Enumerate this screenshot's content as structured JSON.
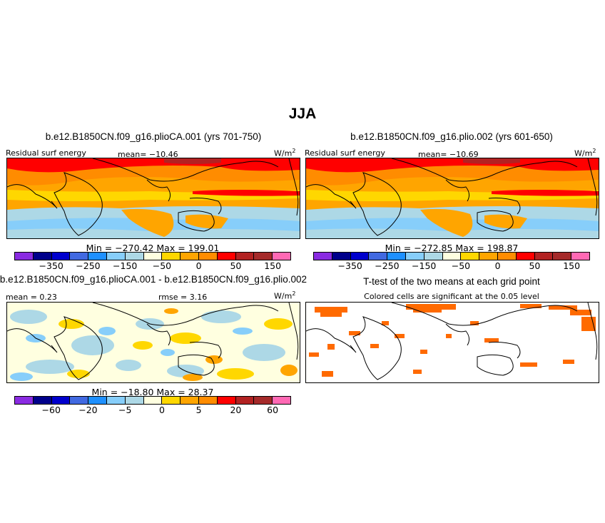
{
  "page_title": "JJA",
  "panels": {
    "p1": {
      "title": "b.e12.B1850CN.f09_g16.plioCA.001 (yrs 701-750)",
      "variable": "Residual surf energy",
      "mean": "mean= −10.46",
      "units": "W/m",
      "units_exp": "2",
      "minmax": "Min = −270.42  Max =  199.01"
    },
    "p2": {
      "title": "b.e12.B1850CN.f09_g16.plio.002 (yrs 601-650)",
      "variable": "Residual surf energy",
      "mean": "mean= −10.69",
      "units": "W/m",
      "units_exp": "2",
      "minmax": "Min = −272.85  Max =  198.87"
    },
    "p3": {
      "title": "b.e12.B1850CN.f09_g16.plioCA.001 - b.e12.B1850CN.f09_g16.plio.002",
      "mean": "mean =   0.23",
      "rmse": "rmse =   3.16",
      "units": "W/m",
      "units_exp": "2",
      "minmax": "Min = −18.80  Max =   28.37"
    },
    "p4": {
      "title": "T-test of the two means at each grid point",
      "subtitle": "Colored cells are significant at the 0.05 level"
    }
  },
  "colorbar_main": {
    "colors": [
      "#8a2be2",
      "#00008b",
      "#0000cd",
      "#4169e1",
      "#1e90ff",
      "#87cefa",
      "#add8e6",
      "#ffffe0",
      "#ffd700",
      "#ffa500",
      "#ff8c00",
      "#ff0000",
      "#b22222",
      "#a52a2a",
      "#ff69b4"
    ],
    "ticks": [
      "−350",
      "−250",
      "−150",
      "−50",
      "0",
      "50",
      "150"
    ]
  },
  "colorbar_diff": {
    "colors": [
      "#8a2be2",
      "#00008b",
      "#0000cd",
      "#4169e1",
      "#1e90ff",
      "#87cefa",
      "#add8e6",
      "#ffffe0",
      "#ffd700",
      "#ffa500",
      "#ff8c00",
      "#ff0000",
      "#b22222",
      "#a52a2a",
      "#ff69b4"
    ],
    "ticks": [
      "−60",
      "−20",
      "−5",
      "0",
      "5",
      "20",
      "60"
    ]
  },
  "colors": {
    "significance": "#ff6a00"
  }
}
